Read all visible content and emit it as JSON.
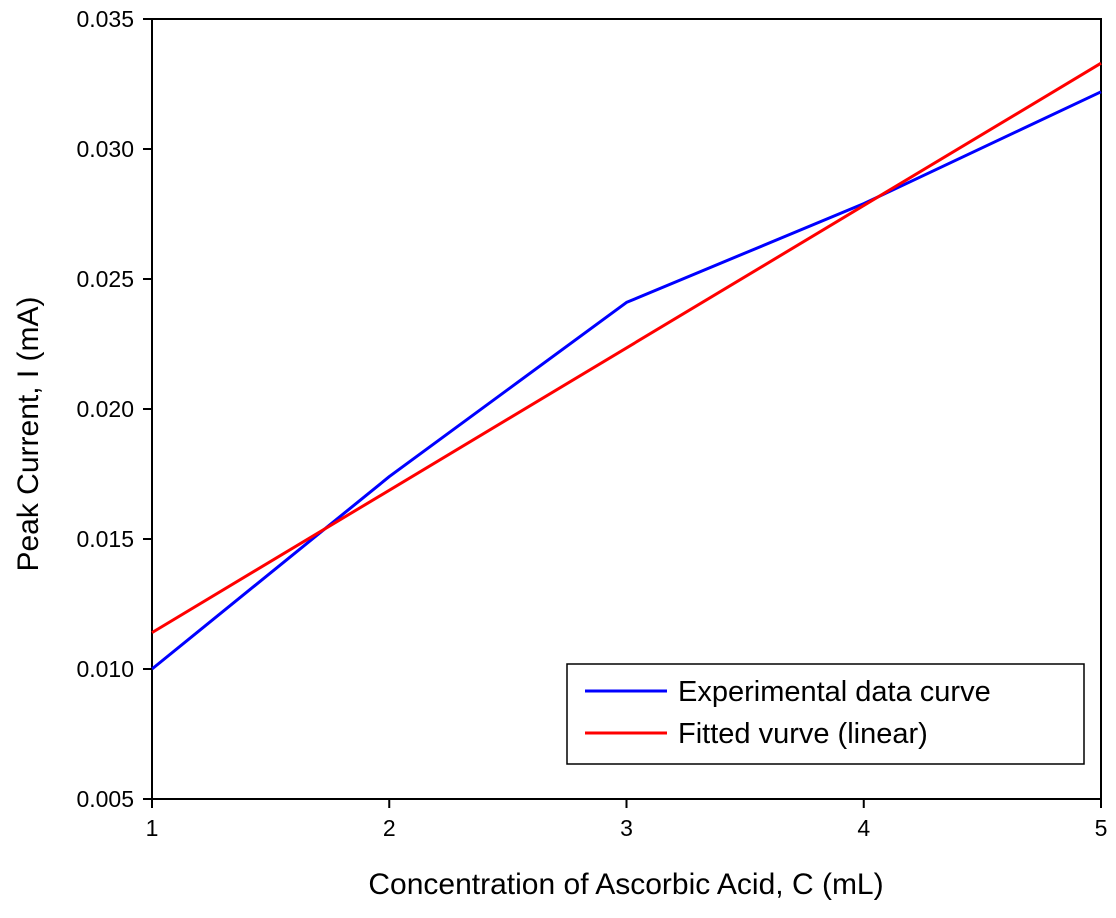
{
  "chart_data": {
    "type": "line",
    "title": "",
    "xlabel": "Concentration of Ascorbic Acid, C (mL)",
    "ylabel": "Peak Current,  I (mA)",
    "xlim": [
      1,
      5
    ],
    "ylim": [
      0.005,
      0.035
    ],
    "x_ticks": [
      1,
      2,
      3,
      4,
      5
    ],
    "x_tick_labels": [
      "1",
      "2",
      "3",
      "4",
      "5"
    ],
    "y_ticks": [
      0.005,
      0.01,
      0.015,
      0.02,
      0.025,
      0.03,
      0.035
    ],
    "y_tick_labels": [
      "0.005",
      "0.010",
      "0.015",
      "0.020",
      "0.025",
      "0.030",
      "0.035"
    ],
    "grid": false,
    "legend_position": "bottom-right",
    "series": [
      {
        "name": "Experimental data curve",
        "color": "#0000ff",
        "x": [
          1,
          2,
          3,
          4,
          5
        ],
        "y": [
          0.01,
          0.0174,
          0.0241,
          0.0279,
          0.0322
        ]
      },
      {
        "name": "Fitted vurve (linear)",
        "color": "#ff0000",
        "x": [
          1,
          5
        ],
        "y": [
          0.0114,
          0.0333
        ]
      }
    ]
  }
}
